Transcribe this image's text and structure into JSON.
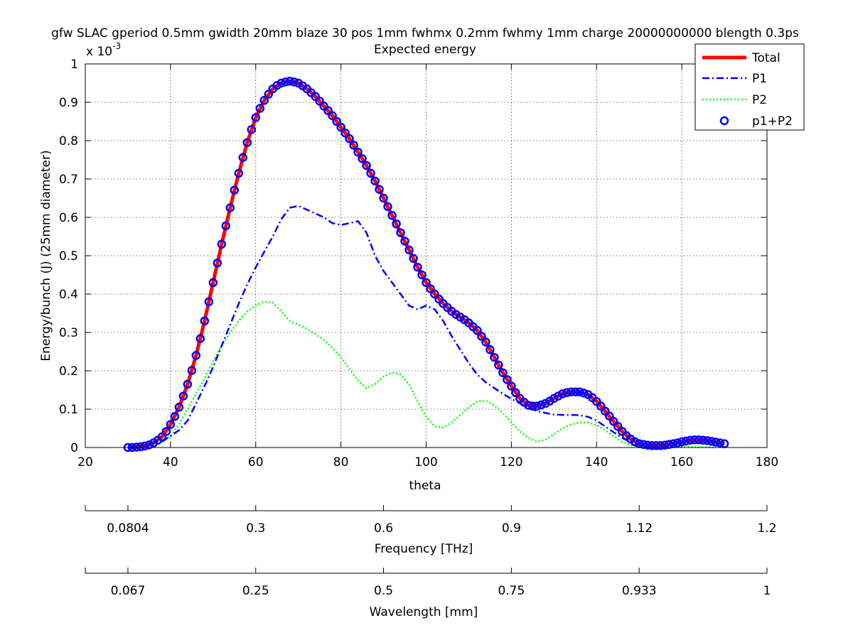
{
  "chart_data": {
    "type": "line",
    "title": "gfw SLAC gperiod 0.5mm gwidth 20mm blaze 30 pos 1mm fwhmx 0.2mm fwhmy 1mm charge 20000000000 blength 0.3ps",
    "subtitle": "Expected energy",
    "xlabel": "theta",
    "ylabel": "Energy/bunch (J) (25mm diameter)",
    "y_exponent_label": "x 10",
    "y_exponent_power": "-3",
    "xlim": [
      20,
      180
    ],
    "ylim": [
      0,
      1
    ],
    "grid": true,
    "legend_position": "top-right",
    "x_ticks": [
      "20",
      "40",
      "60",
      "80",
      "100",
      "120",
      "140",
      "160",
      "180"
    ],
    "y_ticks": [
      "0",
      "0.1",
      "0.2",
      "0.3",
      "0.4",
      "0.5",
      "0.6",
      "0.7",
      "0.8",
      "0.9",
      "1"
    ],
    "x_tick_values": [
      20,
      40,
      60,
      80,
      100,
      120,
      140,
      160,
      180
    ],
    "y_tick_values": [
      0,
      0.1,
      0.2,
      0.3,
      0.4,
      0.5,
      0.6,
      0.7,
      0.8,
      0.9,
      1
    ],
    "secondary_axes": [
      {
        "label": "Frequency [THz]",
        "tick_labels": [
          "0.0804",
          "0.3",
          "0.6",
          "0.9",
          "1.12",
          "1.2"
        ],
        "tick_theta": [
          30,
          60,
          90,
          120,
          150,
          180
        ]
      },
      {
        "label": "Wavelength [mm]",
        "tick_labels": [
          "0.067",
          "0.25",
          "0.5",
          "0.75",
          "0.933",
          "1"
        ],
        "tick_theta": [
          30,
          60,
          90,
          120,
          150,
          180
        ]
      }
    ],
    "series": [
      {
        "name": "Total",
        "style": "solid",
        "color": "#ff0000",
        "x": [
          30,
          32,
          34,
          36,
          38,
          40,
          42,
          44,
          46,
          48,
          50,
          52,
          54,
          56,
          58,
          60,
          62,
          64,
          66,
          68,
          70,
          72,
          74,
          76,
          78,
          80,
          82,
          84,
          86,
          88,
          90,
          92,
          94,
          96,
          98,
          100,
          102,
          104,
          106,
          108,
          110,
          112,
          114,
          116,
          118,
          120,
          122,
          124,
          126,
          128,
          130,
          132,
          134,
          136,
          138,
          140,
          142,
          144,
          146,
          148,
          150,
          152,
          154,
          156,
          158,
          160,
          162,
          164,
          166,
          168,
          170
        ],
        "y": [
          0,
          0.001,
          0.004,
          0.012,
          0.028,
          0.06,
          0.105,
          0.165,
          0.24,
          0.33,
          0.43,
          0.53,
          0.625,
          0.715,
          0.795,
          0.86,
          0.905,
          0.935,
          0.95,
          0.955,
          0.95,
          0.935,
          0.915,
          0.89,
          0.865,
          0.835,
          0.805,
          0.77,
          0.735,
          0.695,
          0.65,
          0.605,
          0.56,
          0.515,
          0.47,
          0.43,
          0.4,
          0.375,
          0.355,
          0.34,
          0.325,
          0.305,
          0.275,
          0.235,
          0.195,
          0.16,
          0.128,
          0.11,
          0.108,
          0.115,
          0.128,
          0.14,
          0.145,
          0.145,
          0.138,
          0.12,
          0.095,
          0.068,
          0.042,
          0.022,
          0.01,
          0.006,
          0.005,
          0.006,
          0.01,
          0.015,
          0.019,
          0.02,
          0.018,
          0.014,
          0.01
        ]
      },
      {
        "name": "P1",
        "style": "dashdot",
        "color": "#0000ff",
        "x": [
          38,
          40,
          42,
          44,
          46,
          48,
          50,
          52,
          54,
          56,
          58,
          60,
          62,
          64,
          66,
          68,
          70,
          72,
          74,
          76,
          78,
          80,
          82,
          84,
          86,
          88,
          90,
          92,
          94,
          96,
          98,
          100,
          102,
          104,
          106,
          108,
          110,
          112,
          114,
          116,
          118,
          120,
          122,
          124,
          126,
          128,
          130,
          132,
          134,
          136,
          138,
          140,
          142,
          144,
          146,
          148,
          150,
          152,
          154
        ],
        "y": [
          0.015,
          0.03,
          0.045,
          0.07,
          0.115,
          0.16,
          0.21,
          0.265,
          0.32,
          0.375,
          0.425,
          0.47,
          0.51,
          0.55,
          0.595,
          0.625,
          0.63,
          0.62,
          0.61,
          0.6,
          0.585,
          0.58,
          0.585,
          0.59,
          0.56,
          0.5,
          0.46,
          0.43,
          0.4,
          0.37,
          0.36,
          0.37,
          0.36,
          0.33,
          0.29,
          0.255,
          0.22,
          0.19,
          0.17,
          0.155,
          0.14,
          0.127,
          0.115,
          0.105,
          0.095,
          0.09,
          0.086,
          0.085,
          0.085,
          0.084,
          0.08,
          0.07,
          0.055,
          0.04,
          0.025,
          0.014,
          0.006,
          0.002,
          0
        ]
      },
      {
        "name": "P2",
        "style": "dotted",
        "color": "#00ff00",
        "x": [
          38,
          40,
          42,
          44,
          46,
          48,
          50,
          52,
          54,
          56,
          58,
          60,
          62,
          64,
          66,
          68,
          70,
          72,
          74,
          76,
          78,
          80,
          82,
          84,
          86,
          88,
          90,
          92,
          94,
          96,
          98,
          100,
          102,
          104,
          106,
          108,
          110,
          112,
          114,
          116,
          118,
          120,
          122,
          124,
          126,
          128,
          130,
          132,
          134,
          136,
          138,
          140,
          142,
          144,
          146,
          148,
          150,
          152,
          154,
          156,
          158,
          160,
          162,
          164,
          166,
          168
        ],
        "y": [
          0.015,
          0.03,
          0.06,
          0.1,
          0.14,
          0.18,
          0.225,
          0.265,
          0.3,
          0.33,
          0.355,
          0.37,
          0.38,
          0.378,
          0.355,
          0.33,
          0.32,
          0.31,
          0.295,
          0.28,
          0.26,
          0.235,
          0.205,
          0.175,
          0.155,
          0.165,
          0.185,
          0.195,
          0.19,
          0.165,
          0.12,
          0.08,
          0.055,
          0.052,
          0.065,
          0.085,
          0.105,
          0.12,
          0.122,
          0.11,
          0.09,
          0.065,
          0.042,
          0.025,
          0.015,
          0.02,
          0.035,
          0.05,
          0.06,
          0.065,
          0.065,
          0.058,
          0.045,
          0.03,
          0.015,
          0.006,
          0.002,
          0.001,
          0.001,
          0.002,
          0.003,
          0.003,
          0.002,
          0.001,
          0.001,
          0
        ]
      },
      {
        "name": "p1+P2",
        "style": "markers",
        "color": "#0000ff",
        "x": [
          30,
          31,
          32,
          33,
          34,
          35,
          36,
          37,
          38,
          39,
          40,
          41,
          42,
          43,
          44,
          45,
          46,
          47,
          48,
          49,
          50,
          51,
          52,
          53,
          54,
          55,
          56,
          57,
          58,
          59,
          60,
          61,
          62,
          63,
          64,
          65,
          66,
          67,
          68,
          69,
          70,
          71,
          72,
          73,
          74,
          75,
          76,
          77,
          78,
          79,
          80,
          81,
          82,
          83,
          84,
          85,
          86,
          87,
          88,
          89,
          90,
          91,
          92,
          93,
          94,
          95,
          96,
          97,
          98,
          99,
          100,
          101,
          102,
          103,
          104,
          105,
          106,
          107,
          108,
          109,
          110,
          111,
          112,
          113,
          114,
          115,
          116,
          117,
          118,
          119,
          120,
          121,
          122,
          123,
          124,
          125,
          126,
          127,
          128,
          129,
          130,
          131,
          132,
          133,
          134,
          135,
          136,
          137,
          138,
          139,
          140,
          141,
          142,
          143,
          144,
          145,
          146,
          147,
          148,
          149,
          150,
          151,
          152,
          153,
          154,
          155,
          156,
          157,
          158,
          159,
          160,
          161,
          162,
          163,
          164,
          165,
          166,
          167,
          168,
          169,
          170
        ],
        "y": [
          0,
          0,
          0.001,
          0.002,
          0.004,
          0.007,
          0.012,
          0.019,
          0.028,
          0.042,
          0.06,
          0.081,
          0.105,
          0.134,
          0.165,
          0.201,
          0.24,
          0.284,
          0.33,
          0.38,
          0.43,
          0.481,
          0.53,
          0.578,
          0.625,
          0.671,
          0.715,
          0.756,
          0.795,
          0.829,
          0.86,
          0.884,
          0.905,
          0.921,
          0.935,
          0.944,
          0.95,
          0.953,
          0.955,
          0.953,
          0.95,
          0.943,
          0.935,
          0.925,
          0.915,
          0.903,
          0.89,
          0.878,
          0.865,
          0.85,
          0.835,
          0.82,
          0.805,
          0.788,
          0.77,
          0.753,
          0.735,
          0.715,
          0.695,
          0.673,
          0.65,
          0.628,
          0.605,
          0.583,
          0.56,
          0.538,
          0.515,
          0.493,
          0.47,
          0.45,
          0.43,
          0.414,
          0.4,
          0.387,
          0.375,
          0.365,
          0.355,
          0.347,
          0.34,
          0.333,
          0.325,
          0.315,
          0.305,
          0.29,
          0.275,
          0.255,
          0.235,
          0.215,
          0.195,
          0.177,
          0.16,
          0.143,
          0.128,
          0.118,
          0.11,
          0.108,
          0.108,
          0.111,
          0.115,
          0.121,
          0.128,
          0.134,
          0.14,
          0.143,
          0.145,
          0.145,
          0.145,
          0.142,
          0.138,
          0.13,
          0.12,
          0.108,
          0.095,
          0.082,
          0.068,
          0.055,
          0.042,
          0.031,
          0.022,
          0.015,
          0.01,
          0.008,
          0.006,
          0.005,
          0.005,
          0.005,
          0.006,
          0.008,
          0.01,
          0.012,
          0.015,
          0.017,
          0.019,
          0.02,
          0.02,
          0.019,
          0.018,
          0.016,
          0.014,
          0.012,
          0.01
        ]
      }
    ]
  }
}
